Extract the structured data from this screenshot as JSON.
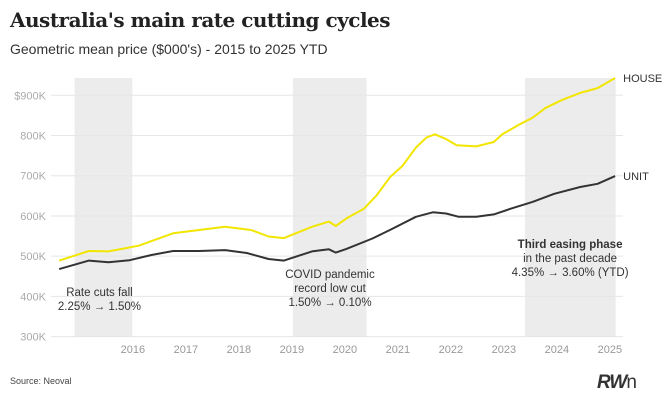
{
  "title": "Australia's main rate cutting cycles",
  "subtitle": "Geometric mean price ($000's) - 2015 to 2025 YTD",
  "source": "Source: Neoval",
  "logo": "RWn",
  "chart_data": {
    "type": "line",
    "title": "Australia's main rate cutting cycles",
    "subtitle": "Geometric mean price ($000's) - 2015 to 2025 YTD",
    "xlabel": "",
    "ylabel": "Geometric mean price ($000's)",
    "xlim": [
      2015.0,
      2025.75
    ],
    "ylim": [
      300,
      950
    ],
    "y_ticks": [
      300,
      400,
      500,
      600,
      700,
      800,
      900
    ],
    "y_tick_labels": [
      "300K",
      "400K",
      "500K",
      "600K",
      "700K",
      "800K",
      "$900K"
    ],
    "x_ticks": [
      2016,
      2017,
      2018,
      2019,
      2020,
      2021,
      2022,
      2023,
      2024,
      2025
    ],
    "x_tick_labels": [
      "2016",
      "2017",
      "2018",
      "2019",
      "2020",
      "2021",
      "2022",
      "2023",
      "2024",
      "2025"
    ],
    "grid": "horizontal",
    "series": [
      {
        "name": "HOUSE",
        "color": "#f2e600",
        "x": [
          2015.09,
          2015.65,
          2016.02,
          2016.59,
          2017.24,
          2017.73,
          2018.22,
          2018.71,
          2019.04,
          2019.33,
          2019.86,
          2020.18,
          2020.31,
          2020.51,
          2020.84,
          2021.08,
          2021.33,
          2021.57,
          2021.82,
          2022.02,
          2022.18,
          2022.39,
          2022.59,
          2022.96,
          2023.29,
          2023.45,
          2023.78,
          2024.02,
          2024.27,
          2024.59,
          2024.92,
          2025.25,
          2025.58
        ],
        "values": [
          489,
          513,
          512,
          526,
          557,
          565,
          573,
          565,
          549,
          545,
          573,
          586,
          575,
          594,
          618,
          651,
          696,
          725,
          770,
          795,
          803,
          791,
          776,
          773,
          784,
          803,
          828,
          844,
          869,
          889,
          906,
          918,
          943
        ]
      },
      {
        "name": "UNIT",
        "color": "#333333",
        "x": [
          2015.09,
          2015.65,
          2016.02,
          2016.42,
          2016.83,
          2017.24,
          2017.73,
          2018.22,
          2018.63,
          2019.04,
          2019.33,
          2019.86,
          2020.18,
          2020.31,
          2020.51,
          2021.0,
          2021.33,
          2021.82,
          2022.14,
          2022.39,
          2022.63,
          2022.96,
          2023.29,
          2023.61,
          2024.02,
          2024.43,
          2024.92,
          2025.25,
          2025.58
        ],
        "values": [
          468,
          489,
          485,
          490,
          503,
          513,
          513,
          515,
          508,
          493,
          489,
          512,
          517,
          509,
          518,
          544,
          565,
          598,
          609,
          606,
          598,
          598,
          604,
          618,
          635,
          655,
          672,
          680,
          699
        ]
      }
    ],
    "shaded_periods": [
      {
        "start": 2015.38,
        "end": 2016.47,
        "label_lines": [
          "Rate cuts fall",
          "2.25% → 1.50%"
        ],
        "bold_first": false
      },
      {
        "start": 2019.5,
        "end": 2020.89,
        "label_lines": [
          "COVID pandemic",
          "record low cut",
          "1.50% → 0.10%"
        ],
        "bold_first": false
      },
      {
        "start": 2023.88,
        "end": 2025.59,
        "label_lines": [
          "Third easing phase",
          "in the past decade",
          "4.35% → 3.60% (YTD)"
        ],
        "bold_first": true
      }
    ],
    "colors": {
      "band": "#ececec",
      "grid": "#e6e6e6",
      "tick_text": "#aaaaaa"
    }
  }
}
